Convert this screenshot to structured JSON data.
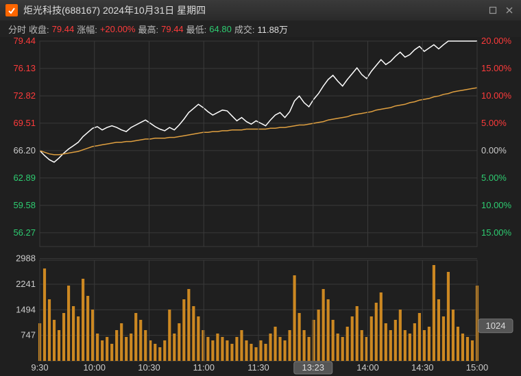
{
  "titlebar": {
    "stock_name": "炬光科技",
    "stock_code": "(688167)",
    "date": "2024年10月31日",
    "weekday": "星期四"
  },
  "stats": {
    "mode_label": "分时",
    "close_label": "收盘:",
    "close_value": "79.44",
    "change_label": "涨幅:",
    "change_value": "+20.00%",
    "high_label": "最高:",
    "high_value": "79.44",
    "low_label": "最低:",
    "low_value": "64.80",
    "volume_label": "成交:",
    "volume_value": "11.88万"
  },
  "price_chart": {
    "type": "line",
    "ylim": [
      54.6,
      79.44
    ],
    "y_ticks_left": [
      {
        "v": 79.44,
        "color": "#ff3b3b"
      },
      {
        "v": 76.13,
        "color": "#ff3b3b"
      },
      {
        "v": 72.82,
        "color": "#ff3b3b"
      },
      {
        "v": 69.51,
        "color": "#ff3b3b"
      },
      {
        "v": 66.2,
        "color": "#cccccc"
      },
      {
        "v": 62.89,
        "color": "#2ecc71"
      },
      {
        "v": 59.58,
        "color": "#2ecc71"
      },
      {
        "v": 56.27,
        "color": "#2ecc71"
      }
    ],
    "y_ticks_right": [
      {
        "label": "20.00%",
        "color": "#ff3b3b"
      },
      {
        "label": "15.00%",
        "color": "#ff3b3b"
      },
      {
        "label": "10.00%",
        "color": "#ff3b3b"
      },
      {
        "label": "5.00%",
        "color": "#ff3b3b"
      },
      {
        "label": "0.00%",
        "color": "#cccccc"
      },
      {
        "label": "5.00%",
        "color": "#2ecc71"
      },
      {
        "label": "10.00%",
        "color": "#2ecc71"
      },
      {
        "label": "15.00%",
        "color": "#2ecc71"
      }
    ],
    "x_ticks": [
      "9:30",
      "10:00",
      "10:30",
      "11:00",
      "11:30",
      "13:23",
      "14:00",
      "14:30",
      "15:00"
    ],
    "x_hover_label": "13:23",
    "x_hover_index": 5,
    "price_series_color": "#ffffff",
    "avg_series_color": "#e0a040",
    "price_line_width": 1.5,
    "avg_line_width": 1.5,
    "grid_color": "#3a3a3a",
    "background_color": "#1f1f1f",
    "price_series": [
      66.2,
      65.6,
      65.1,
      64.8,
      65.3,
      65.9,
      66.4,
      66.8,
      67.2,
      67.9,
      68.4,
      68.9,
      69.1,
      68.7,
      69.0,
      69.2,
      69.0,
      68.7,
      68.5,
      69.0,
      69.3,
      69.6,
      69.9,
      69.5,
      69.1,
      68.8,
      68.6,
      69.0,
      68.7,
      69.3,
      70.0,
      70.8,
      71.3,
      71.8,
      71.4,
      70.9,
      70.5,
      70.8,
      71.1,
      71.0,
      70.4,
      69.8,
      70.2,
      69.7,
      69.4,
      69.8,
      69.5,
      69.2,
      69.9,
      70.5,
      70.8,
      70.2,
      70.9,
      72.2,
      72.8,
      72.0,
      71.5,
      72.4,
      73.1,
      74.0,
      74.8,
      75.3,
      74.6,
      74.0,
      74.8,
      75.5,
      76.2,
      75.4,
      74.9,
      75.8,
      76.5,
      77.2,
      76.6,
      77.0,
      77.6,
      78.1,
      77.5,
      77.8,
      78.4,
      78.8,
      78.2,
      78.6,
      79.0,
      78.5,
      79.0,
      79.44,
      79.44,
      79.44,
      79.44,
      79.44,
      79.44,
      79.44
    ],
    "avg_series": [
      66.2,
      66.0,
      65.8,
      65.7,
      65.7,
      65.8,
      65.9,
      66.0,
      66.1,
      66.3,
      66.5,
      66.7,
      66.8,
      66.9,
      67.0,
      67.1,
      67.2,
      67.2,
      67.3,
      67.3,
      67.4,
      67.5,
      67.6,
      67.6,
      67.7,
      67.7,
      67.7,
      67.8,
      67.8,
      67.9,
      68.0,
      68.1,
      68.2,
      68.3,
      68.4,
      68.4,
      68.5,
      68.5,
      68.6,
      68.6,
      68.7,
      68.7,
      68.7,
      68.8,
      68.8,
      68.8,
      68.8,
      68.8,
      68.9,
      68.9,
      69.0,
      69.0,
      69.1,
      69.2,
      69.3,
      69.3,
      69.4,
      69.5,
      69.6,
      69.7,
      69.9,
      70.0,
      70.1,
      70.2,
      70.3,
      70.5,
      70.6,
      70.7,
      70.8,
      70.9,
      71.1,
      71.2,
      71.3,
      71.4,
      71.6,
      71.7,
      71.8,
      72.0,
      72.1,
      72.3,
      72.4,
      72.5,
      72.7,
      72.8,
      73.0,
      73.1,
      73.3,
      73.4,
      73.5,
      73.6,
      73.7,
      73.8
    ]
  },
  "volume_chart": {
    "type": "bar",
    "y_ticks": [
      2988,
      2241,
      1494,
      747
    ],
    "y_tick_color": "#cccccc",
    "bar_color": "#cc8822",
    "bar_width": 0.6,
    "volume_badge": "1024",
    "series": [
      1100,
      2700,
      1800,
      1200,
      900,
      1400,
      2200,
      1600,
      1300,
      2400,
      1900,
      1500,
      800,
      600,
      700,
      500,
      900,
      1100,
      700,
      800,
      1400,
      1200,
      900,
      600,
      500,
      400,
      600,
      1500,
      800,
      1100,
      1800,
      2100,
      1600,
      1300,
      900,
      700,
      600,
      800,
      700,
      600,
      500,
      700,
      900,
      600,
      500,
      400,
      600,
      500,
      800,
      1000,
      700,
      600,
      900,
      2500,
      1400,
      900,
      700,
      1200,
      1500,
      2100,
      1800,
      1200,
      800,
      700,
      1000,
      1300,
      1600,
      900,
      700,
      1300,
      1700,
      2000,
      1100,
      900,
      1200,
      1500,
      900,
      800,
      1100,
      1400,
      900,
      1000,
      2800,
      1800,
      1300,
      2600,
      1500,
      1000,
      800,
      700,
      600,
      2200
    ]
  }
}
